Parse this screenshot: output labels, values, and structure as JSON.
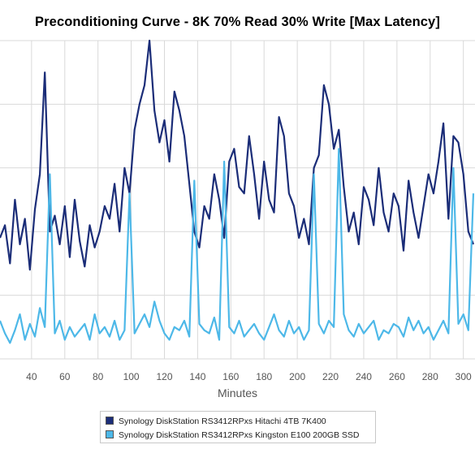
{
  "colors": {
    "hdd": "#1b2d78",
    "ssd": "#4db8e8",
    "grid": "#d9d9d9"
  },
  "legend": [
    "Synology DiskStation RS3412RPxs Hitachi 4TB 7K400",
    "Synology DiskStation RS3412RPxs Kingston E100 200GB SSD"
  ],
  "chart_data": {
    "type": "line",
    "title": "Preconditioning Curve - 8K 70% Read 30% Write [Max Latency]",
    "xlabel": "Minutes",
    "ylabel": "",
    "xlim": [
      21,
      307
    ],
    "ylim": [
      0,
      100
    ],
    "x_ticks": [
      40,
      60,
      80,
      100,
      120,
      140,
      160,
      180,
      200,
      220,
      240,
      260,
      280,
      300
    ],
    "x_tick_labels": [
      "40",
      "60",
      "80",
      "100",
      "120",
      "140",
      "160",
      "180",
      "200",
      "220",
      "240",
      "260",
      "280",
      "300"
    ],
    "y_ticks": [
      0,
      20,
      40,
      60,
      80,
      100
    ],
    "grid": true,
    "legend_position": "bottom",
    "series": [
      {
        "name": "Synology DiskStation RS3412RPxs Hitachi 4TB 7K400",
        "x": [
          21,
          24,
          27,
          30,
          33,
          36,
          39,
          42,
          45,
          48,
          51,
          54,
          57,
          60,
          63,
          66,
          69,
          72,
          75,
          78,
          81,
          84,
          87,
          90,
          93,
          96,
          99,
          102,
          105,
          108,
          111,
          114,
          117,
          120,
          123,
          126,
          129,
          132,
          135,
          138,
          141,
          144,
          147,
          150,
          153,
          156,
          159,
          162,
          165,
          168,
          171,
          174,
          177,
          180,
          183,
          186,
          189,
          192,
          195,
          198,
          201,
          204,
          207,
          210,
          213,
          216,
          219,
          222,
          225,
          228,
          231,
          234,
          237,
          240,
          243,
          246,
          249,
          252,
          255,
          258,
          261,
          264,
          267,
          270,
          273,
          276,
          279,
          282,
          285,
          288,
          291,
          294,
          297,
          300,
          303,
          306
        ],
        "values": [
          38,
          42,
          30,
          50,
          36,
          44,
          28,
          47,
          58,
          90,
          40,
          45,
          36,
          48,
          32,
          50,
          37,
          29,
          42,
          35,
          40,
          48,
          44,
          55,
          40,
          60,
          52,
          72,
          80,
          86,
          100,
          78,
          68,
          75,
          62,
          84,
          78,
          70,
          55,
          40,
          35,
          48,
          44,
          58,
          50,
          38,
          62,
          66,
          54,
          52,
          70,
          58,
          44,
          62,
          50,
          46,
          76,
          70,
          52,
          48,
          38,
          44,
          36,
          60,
          64,
          86,
          80,
          66,
          72,
          54,
          40,
          46,
          36,
          54,
          50,
          42,
          60,
          46,
          40,
          52,
          48,
          34,
          56,
          46,
          38,
          48,
          58,
          52,
          62,
          74,
          44,
          70,
          68,
          58,
          40,
          36
        ]
      },
      {
        "name": "Synology DiskStation RS3412RPxs Kingston E100 200GB SSD",
        "x": [
          21,
          24,
          27,
          30,
          33,
          36,
          39,
          42,
          45,
          48,
          51,
          54,
          57,
          60,
          63,
          66,
          69,
          72,
          75,
          78,
          81,
          84,
          87,
          90,
          93,
          96,
          99,
          102,
          105,
          108,
          111,
          114,
          117,
          120,
          123,
          126,
          129,
          132,
          135,
          138,
          141,
          144,
          147,
          150,
          153,
          156,
          159,
          162,
          165,
          168,
          171,
          174,
          177,
          180,
          183,
          186,
          189,
          192,
          195,
          198,
          201,
          204,
          207,
          210,
          213,
          216,
          219,
          222,
          225,
          228,
          231,
          234,
          237,
          240,
          243,
          246,
          249,
          252,
          255,
          258,
          261,
          264,
          267,
          270,
          273,
          276,
          279,
          282,
          285,
          288,
          291,
          294,
          297,
          300,
          303,
          306
        ],
        "values": [
          12,
          8,
          5,
          9,
          14,
          6,
          11,
          7,
          16,
          10,
          58,
          8,
          12,
          6,
          10,
          7,
          9,
          11,
          6,
          14,
          8,
          10,
          7,
          12,
          6,
          9,
          52,
          8,
          11,
          14,
          10,
          18,
          12,
          8,
          6,
          10,
          9,
          12,
          7,
          56,
          11,
          9,
          8,
          13,
          6,
          62,
          10,
          8,
          12,
          7,
          9,
          11,
          8,
          6,
          10,
          14,
          9,
          7,
          12,
          8,
          10,
          6,
          9,
          58,
          11,
          8,
          12,
          10,
          66,
          14,
          9,
          7,
          11,
          8,
          10,
          12,
          6,
          9,
          8,
          11,
          10,
          7,
          13,
          9,
          12,
          8,
          10,
          6,
          9,
          12,
          8,
          60,
          11,
          14,
          9,
          52
        ]
      }
    ]
  }
}
